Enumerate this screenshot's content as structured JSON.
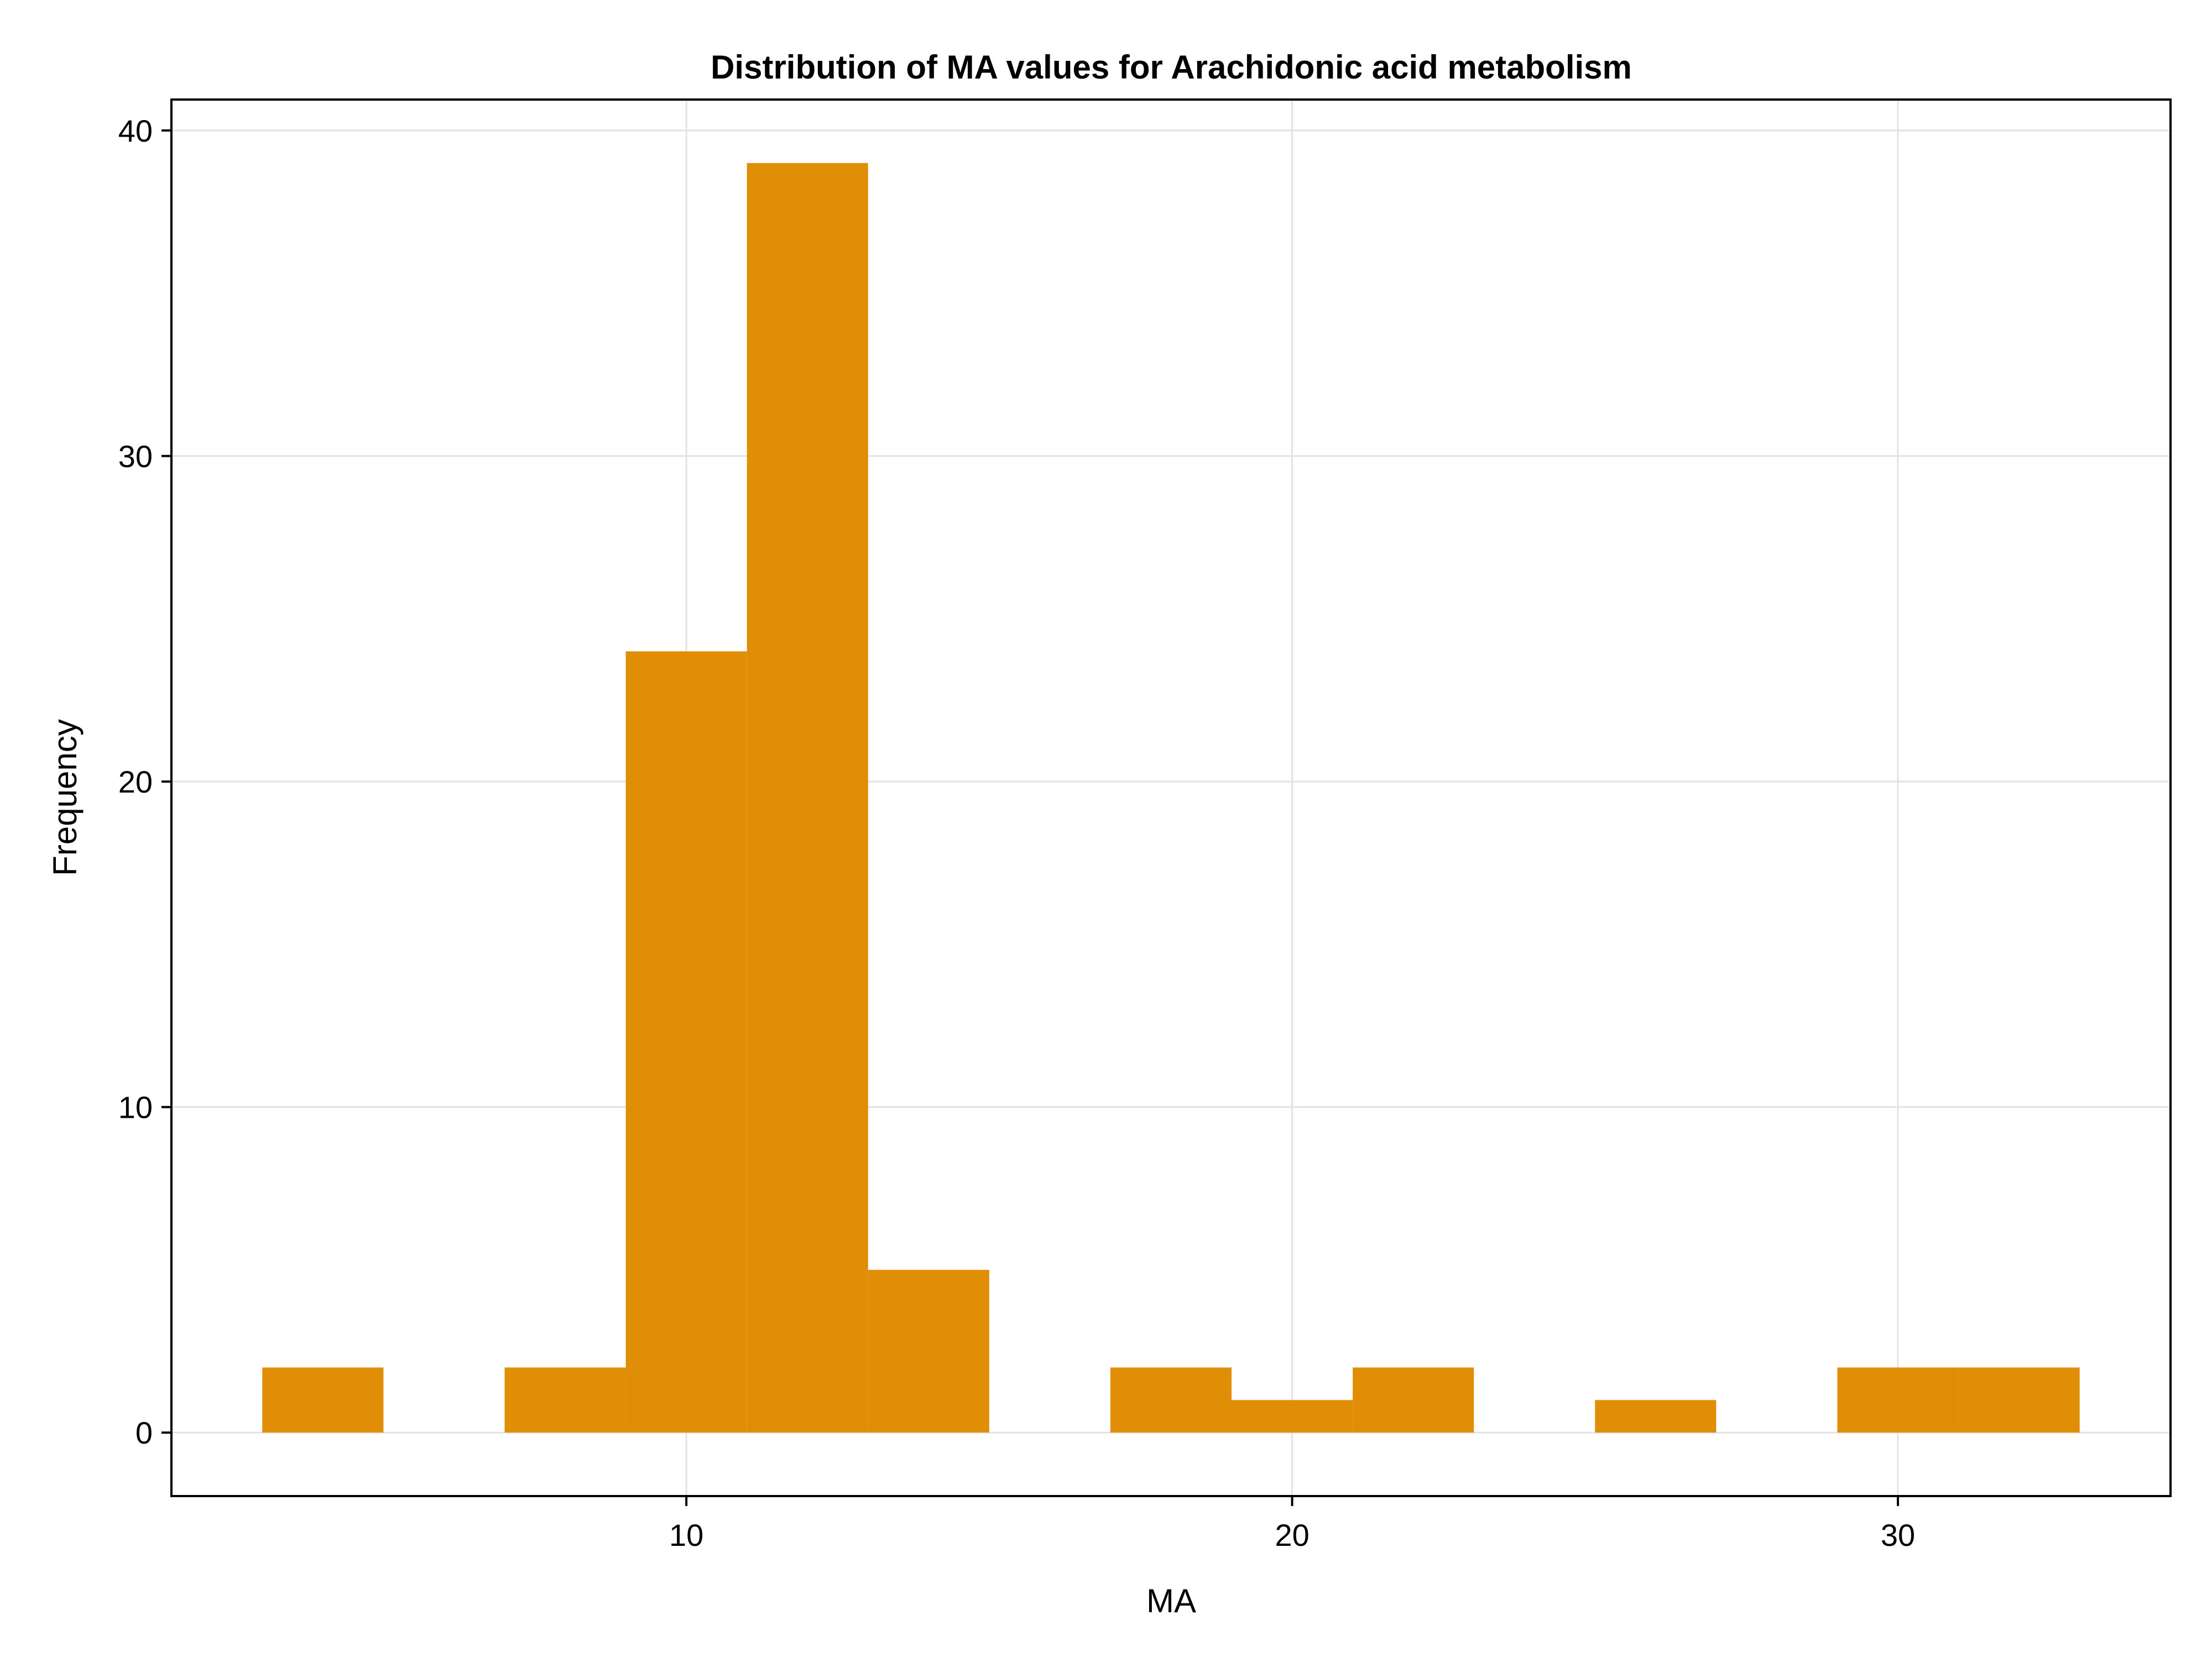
{
  "chart_data": {
    "type": "bar",
    "title": "Distribution of MA values for Arachidonic acid metabolism",
    "xlabel": "MA",
    "ylabel": "Frequency",
    "bin_width": 2,
    "bins": [
      {
        "start": 3,
        "end": 5,
        "count": 2
      },
      {
        "start": 5,
        "end": 7,
        "count": 0
      },
      {
        "start": 7,
        "end": 9,
        "count": 2
      },
      {
        "start": 9,
        "end": 11,
        "count": 24
      },
      {
        "start": 11,
        "end": 13,
        "count": 39
      },
      {
        "start": 13,
        "end": 15,
        "count": 5
      },
      {
        "start": 15,
        "end": 17,
        "count": 0
      },
      {
        "start": 17,
        "end": 19,
        "count": 2
      },
      {
        "start": 19,
        "end": 21,
        "count": 1
      },
      {
        "start": 21,
        "end": 23,
        "count": 2
      },
      {
        "start": 23,
        "end": 25,
        "count": 0
      },
      {
        "start": 25,
        "end": 27,
        "count": 1
      },
      {
        "start": 27,
        "end": 29,
        "count": 0
      },
      {
        "start": 29,
        "end": 31,
        "count": 2
      },
      {
        "start": 31,
        "end": 33,
        "count": 2
      }
    ],
    "xlim": [
      1.5,
      34.5
    ],
    "ylim": [
      -1.95,
      40.95
    ],
    "xticks": [
      10,
      20,
      30
    ],
    "yticks": [
      0,
      10,
      20,
      30,
      40
    ],
    "grid": true,
    "legend": "none",
    "bar_color": "#E08E05",
    "grid_color": "#E3E3E3"
  }
}
